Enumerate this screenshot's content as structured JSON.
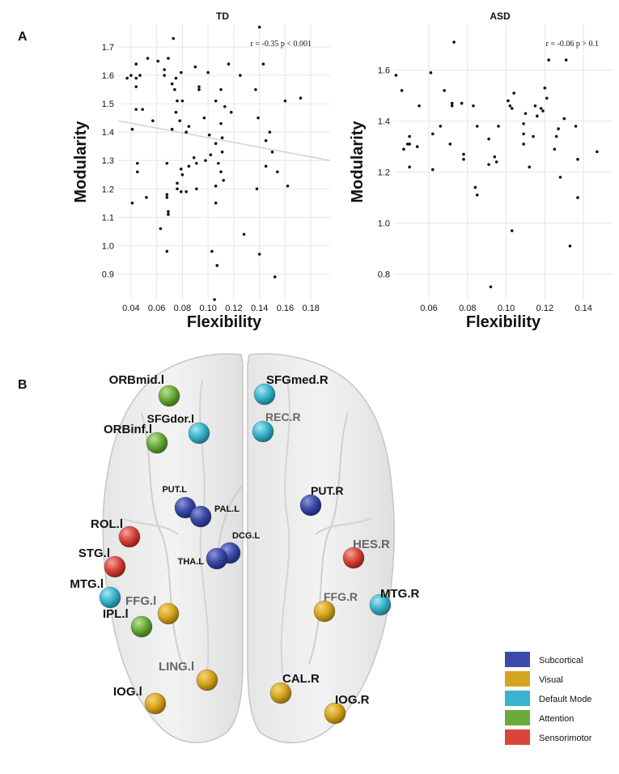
{
  "panel_a_label": "A",
  "panel_b_label": "B",
  "chart_data": [
    {
      "type": "scatter",
      "title": "TD",
      "xlabel": "Flexibility",
      "ylabel": "Modularity",
      "annotation": "r = -0.35 p < 0.001",
      "xlim": [
        0.03,
        0.195
      ],
      "ylim": [
        0.81,
        1.78
      ],
      "xticks": [
        "0.04",
        "0.06",
        "0.08",
        "0.10",
        "0.12",
        "0.14",
        "0.16",
        "0.18"
      ],
      "yticks": [
        "0.9",
        "1.0",
        "1.1",
        "1.2",
        "1.3",
        "1.4",
        "1.5",
        "1.6",
        "1.7"
      ],
      "regression_line": [
        [
          0.03,
          1.44
        ],
        [
          0.195,
          1.3
        ]
      ],
      "points": [
        [
          0.037,
          1.59
        ],
        [
          0.04,
          1.6
        ],
        [
          0.041,
          1.41
        ],
        [
          0.041,
          1.15
        ],
        [
          0.044,
          1.59
        ],
        [
          0.044,
          1.64
        ],
        [
          0.044,
          1.56
        ],
        [
          0.044,
          1.48
        ],
        [
          0.045,
          1.26
        ],
        [
          0.045,
          1.29
        ],
        [
          0.047,
          1.6
        ],
        [
          0.049,
          1.48
        ],
        [
          0.052,
          1.17
        ],
        [
          0.053,
          1.66
        ],
        [
          0.057,
          1.44
        ],
        [
          0.061,
          1.65
        ],
        [
          0.063,
          1.06
        ],
        [
          0.066,
          1.62
        ],
        [
          0.066,
          1.6
        ],
        [
          0.068,
          1.18
        ],
        [
          0.068,
          1.17
        ],
        [
          0.068,
          1.29
        ],
        [
          0.068,
          0.98
        ],
        [
          0.069,
          1.66
        ],
        [
          0.069,
          1.12
        ],
        [
          0.069,
          1.11
        ],
        [
          0.072,
          1.41
        ],
        [
          0.072,
          1.57
        ],
        [
          0.073,
          1.73
        ],
        [
          0.074,
          1.55
        ],
        [
          0.075,
          1.59
        ],
        [
          0.075,
          1.47
        ],
        [
          0.076,
          1.51
        ],
        [
          0.076,
          1.2
        ],
        [
          0.076,
          1.22
        ],
        [
          0.078,
          1.44
        ],
        [
          0.079,
          1.61
        ],
        [
          0.079,
          1.19
        ],
        [
          0.079,
          1.27
        ],
        [
          0.08,
          1.25
        ],
        [
          0.08,
          1.51
        ],
        [
          0.083,
          1.4
        ],
        [
          0.083,
          1.19
        ],
        [
          0.085,
          1.28
        ],
        [
          0.085,
          1.42
        ],
        [
          0.089,
          1.31
        ],
        [
          0.09,
          1.63
        ],
        [
          0.091,
          1.2
        ],
        [
          0.091,
          1.29
        ],
        [
          0.093,
          1.55
        ],
        [
          0.093,
          1.56
        ],
        [
          0.097,
          1.45
        ],
        [
          0.098,
          1.3
        ],
        [
          0.1,
          1.61
        ],
        [
          0.101,
          1.39
        ],
        [
          0.102,
          1.32
        ],
        [
          0.103,
          0.98
        ],
        [
          0.106,
          1.15
        ],
        [
          0.106,
          1.21
        ],
        [
          0.106,
          1.36
        ],
        [
          0.106,
          1.51
        ],
        [
          0.107,
          0.93
        ],
        [
          0.108,
          1.29
        ],
        [
          0.11,
          1.55
        ],
        [
          0.11,
          1.43
        ],
        [
          0.11,
          1.26
        ],
        [
          0.111,
          1.38
        ],
        [
          0.111,
          1.33
        ],
        [
          0.112,
          1.23
        ],
        [
          0.113,
          1.49
        ],
        [
          0.116,
          1.64
        ],
        [
          0.118,
          1.47
        ],
        [
          0.125,
          1.6
        ],
        [
          0.128,
          1.04
        ],
        [
          0.137,
          1.55
        ],
        [
          0.138,
          1.2
        ],
        [
          0.139,
          1.45
        ],
        [
          0.14,
          1.77
        ],
        [
          0.14,
          0.97
        ],
        [
          0.143,
          1.64
        ],
        [
          0.145,
          1.37
        ],
        [
          0.145,
          1.28
        ],
        [
          0.148,
          1.4
        ],
        [
          0.15,
          1.33
        ],
        [
          0.152,
          0.89
        ],
        [
          0.154,
          1.26
        ],
        [
          0.16,
          1.51
        ],
        [
          0.162,
          1.21
        ],
        [
          0.172,
          1.52
        ],
        [
          0.105,
          0.81
        ]
      ]
    },
    {
      "type": "scatter",
      "title": "ASD",
      "xlabel": "Flexibility",
      "ylabel": "Modularity",
      "annotation": "r = -0.06 p > 0.1",
      "xlim": [
        0.042,
        0.155
      ],
      "ylim": [
        0.7,
        1.78
      ],
      "xticks": [
        "0.06",
        "0.08",
        "0.10",
        "0.12",
        "0.14"
      ],
      "yticks": [
        "0.8",
        "1.0",
        "1.2",
        "1.4",
        "1.6"
      ],
      "points": [
        [
          0.043,
          1.58
        ],
        [
          0.046,
          1.52
        ],
        [
          0.047,
          1.29
        ],
        [
          0.049,
          1.31
        ],
        [
          0.05,
          1.34
        ],
        [
          0.05,
          1.31
        ],
        [
          0.05,
          1.22
        ],
        [
          0.054,
          1.3
        ],
        [
          0.055,
          1.46
        ],
        [
          0.061,
          1.59
        ],
        [
          0.062,
          1.35
        ],
        [
          0.062,
          1.21
        ],
        [
          0.066,
          1.38
        ],
        [
          0.068,
          1.52
        ],
        [
          0.071,
          1.31
        ],
        [
          0.072,
          1.46
        ],
        [
          0.072,
          1.47
        ],
        [
          0.073,
          1.71
        ],
        [
          0.077,
          1.47
        ],
        [
          0.078,
          1.25
        ],
        [
          0.078,
          1.27
        ],
        [
          0.083,
          1.46
        ],
        [
          0.084,
          1.14
        ],
        [
          0.085,
          1.38
        ],
        [
          0.085,
          1.11
        ],
        [
          0.091,
          1.23
        ],
        [
          0.091,
          1.33
        ],
        [
          0.092,
          0.75
        ],
        [
          0.094,
          1.26
        ],
        [
          0.095,
          1.24
        ],
        [
          0.096,
          1.38
        ],
        [
          0.101,
          1.48
        ],
        [
          0.102,
          1.46
        ],
        [
          0.103,
          1.45
        ],
        [
          0.103,
          0.97
        ],
        [
          0.104,
          1.51
        ],
        [
          0.109,
          1.31
        ],
        [
          0.109,
          1.35
        ],
        [
          0.109,
          1.39
        ],
        [
          0.11,
          1.43
        ],
        [
          0.112,
          1.22
        ],
        [
          0.114,
          1.34
        ],
        [
          0.115,
          1.46
        ],
        [
          0.116,
          1.42
        ],
        [
          0.118,
          1.45
        ],
        [
          0.119,
          1.44
        ],
        [
          0.12,
          1.53
        ],
        [
          0.12,
          1.53
        ],
        [
          0.121,
          1.49
        ],
        [
          0.122,
          1.64
        ],
        [
          0.125,
          1.29
        ],
        [
          0.126,
          1.34
        ],
        [
          0.127,
          1.37
        ],
        [
          0.128,
          1.18
        ],
        [
          0.13,
          1.41
        ],
        [
          0.131,
          1.64
        ],
        [
          0.133,
          0.91
        ],
        [
          0.136,
          1.38
        ],
        [
          0.137,
          1.1
        ],
        [
          0.137,
          1.25
        ],
        [
          0.147,
          1.28
        ]
      ]
    }
  ],
  "colors": {
    "subcortical": "#3a4aa8",
    "visual": "#d6a51e",
    "default_mode": "#39b4cc",
    "attention": "#6aaa3a",
    "sensorimotor": "#d9443b",
    "brain": "#d9d9d9",
    "regression": "#d2d2d2"
  },
  "brain_regions": [
    {
      "label": "ORBmid.l",
      "network": "attention"
    },
    {
      "label": "SFGdor.l",
      "network": "default_mode"
    },
    {
      "label": "ORBinf.l",
      "network": "attention"
    },
    {
      "label": "SFGmed.R",
      "network": "default_mode"
    },
    {
      "label": "REC.R",
      "network": "default_mode"
    },
    {
      "label": "PUT.L",
      "network": "subcortical"
    },
    {
      "label": "PAL.L",
      "network": "subcortical"
    },
    {
      "label": "PUT.R",
      "network": "subcortical"
    },
    {
      "label": "ROL.l",
      "network": "sensorimotor"
    },
    {
      "label": "DCG.L",
      "network": "subcortical"
    },
    {
      "label": "THA.L",
      "network": "subcortical"
    },
    {
      "label": "STG.l",
      "network": "sensorimotor"
    },
    {
      "label": "HES.R",
      "network": "sensorimotor"
    },
    {
      "label": "MTG.l",
      "network": "default_mode"
    },
    {
      "label": "FFG.l",
      "network": "visual"
    },
    {
      "label": "IPL.l",
      "network": "attention"
    },
    {
      "label": "FFG.R",
      "network": "visual"
    },
    {
      "label": "MTG.R",
      "network": "default_mode"
    },
    {
      "label": "LING.l",
      "network": "visual"
    },
    {
      "label": "IOG.l",
      "network": "visual"
    },
    {
      "label": "CAL.R",
      "network": "visual"
    },
    {
      "label": "IOG.R",
      "network": "visual"
    }
  ],
  "legend": [
    {
      "label": "Subcortical",
      "network": "subcortical"
    },
    {
      "label": "Visual",
      "network": "visual"
    },
    {
      "label": "Default Mode",
      "network": "default_mode"
    },
    {
      "label": "Attention",
      "network": "attention"
    },
    {
      "label": "Sensorimotor",
      "network": "sensorimotor"
    }
  ]
}
